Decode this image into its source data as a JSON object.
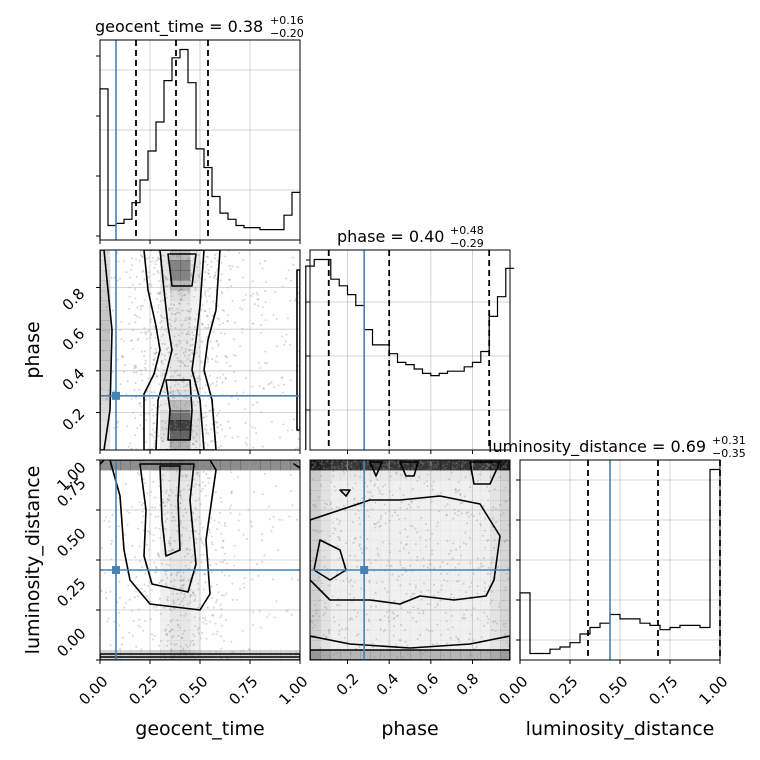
{
  "chart_data": {
    "type": "corner",
    "parameters": [
      "geocent_time",
      "phase",
      "luminosity_distance"
    ],
    "truth": {
      "geocent_time": 0.08,
      "phase": 0.28,
      "luminosity_distance": 0.45
    },
    "titles": {
      "geocent_time": {
        "prefix": "geocent_time = 0.38",
        "plus": "+0.16",
        "minus": "−0.20"
      },
      "phase": {
        "prefix": "phase = 0.40",
        "plus": "+0.48",
        "minus": "−0.29"
      },
      "luminosity_distance": {
        "prefix": "luminosity_distance = 0.69",
        "plus": "+0.31",
        "minus": "−0.35"
      }
    },
    "quantile_lines": {
      "geocent_time": [
        0.18,
        0.38,
        0.54
      ],
      "phase": [
        0.11,
        0.4,
        0.88
      ],
      "luminosity_distance": [
        0.34,
        0.69,
        1.0
      ]
    },
    "histograms": {
      "geocent_time": {
        "xlim": [
          0,
          1
        ],
        "bins": [
          0.0,
          0.04,
          0.08,
          0.12,
          0.16,
          0.2,
          0.24,
          0.28,
          0.32,
          0.36,
          0.4,
          0.44,
          0.48,
          0.52,
          0.56,
          0.6,
          0.64,
          0.68,
          0.72,
          0.76,
          0.8,
          0.84,
          0.88,
          0.92,
          0.96,
          1.0
        ],
        "counts": [
          0.73,
          0.07,
          0.08,
          0.1,
          0.18,
          0.29,
          0.43,
          0.57,
          0.77,
          0.88,
          0.92,
          0.76,
          0.44,
          0.35,
          0.21,
          0.13,
          0.1,
          0.07,
          0.06,
          0.06,
          0.05,
          0.05,
          0.05,
          0.12,
          0.23
        ]
      },
      "phase": {
        "xlim": [
          0,
          1
        ],
        "bins": [
          0.0,
          0.04,
          0.08,
          0.12,
          0.16,
          0.2,
          0.24,
          0.28,
          0.32,
          0.36,
          0.4,
          0.44,
          0.48,
          0.52,
          0.56,
          0.6,
          0.64,
          0.68,
          0.72,
          0.76,
          0.8,
          0.84,
          0.88,
          0.92,
          0.96,
          1.0
        ],
        "counts": [
          0.84,
          0.87,
          0.87,
          0.78,
          0.75,
          0.71,
          0.66,
          0.55,
          0.48,
          0.48,
          0.44,
          0.4,
          0.39,
          0.37,
          0.35,
          0.34,
          0.35,
          0.36,
          0.36,
          0.38,
          0.4,
          0.45,
          0.61,
          0.7,
          0.83
        ]
      },
      "luminosity_distance": {
        "xlim": [
          0,
          1
        ],
        "bins": [
          0.0,
          0.05,
          0.1,
          0.15,
          0.2,
          0.25,
          0.3,
          0.35,
          0.4,
          0.45,
          0.5,
          0.55,
          0.6,
          0.65,
          0.7,
          0.75,
          0.8,
          0.85,
          0.9,
          0.95,
          1.0
        ],
        "counts": [
          0.31,
          0.03,
          0.03,
          0.05,
          0.06,
          0.08,
          0.12,
          0.15,
          0.17,
          0.21,
          0.19,
          0.19,
          0.17,
          0.16,
          0.14,
          0.15,
          0.16,
          0.16,
          0.15,
          0.88
        ]
      }
    },
    "ticks": {
      "geocent_time": [
        "0.00",
        "0.25",
        "0.50",
        "0.75",
        "1.00"
      ],
      "phase_y": [
        "0.2",
        "0.4",
        "0.6",
        "0.8"
      ],
      "phase_x": [
        "0.2",
        "0.4",
        "0.6",
        "0.8"
      ],
      "luminosity_distance_y": [
        "0.00",
        "0.25",
        "0.50",
        "0.75",
        "1.00"
      ],
      "luminosity_distance_x": [
        "0.00",
        "0.25",
        "0.50",
        "0.75",
        "1.00"
      ]
    },
    "axis_labels": {
      "x": [
        "geocent_time",
        "phase",
        "luminosity_distance"
      ],
      "y": [
        "phase",
        "luminosity_distance"
      ]
    },
    "grid": true,
    "colors": {
      "truth": "#4682b4",
      "hist": "#000000",
      "contour": "#000000",
      "density": "#000000",
      "points": "#888888"
    }
  }
}
